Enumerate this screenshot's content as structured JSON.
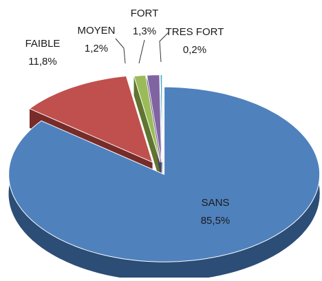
{
  "chart_data": {
    "type": "pie",
    "categories": [
      "SANS",
      "FAIBLE",
      "MOYEN",
      "FORT",
      "TRES FORT"
    ],
    "values": [
      85.5,
      11.8,
      1.2,
      1.3,
      0.2
    ],
    "value_labels": [
      "85,5%",
      "11,8%",
      "1,2%",
      "1,3%",
      "0,2%"
    ],
    "colors": [
      "#4f81bd",
      "#c0504d",
      "#9bbb59",
      "#8064a2",
      "#4bacc6"
    ],
    "side_colors": [
      "#2c4d75",
      "#772c2a",
      "#5f7530",
      "#4d3b62",
      "#2c6f80"
    ]
  }
}
